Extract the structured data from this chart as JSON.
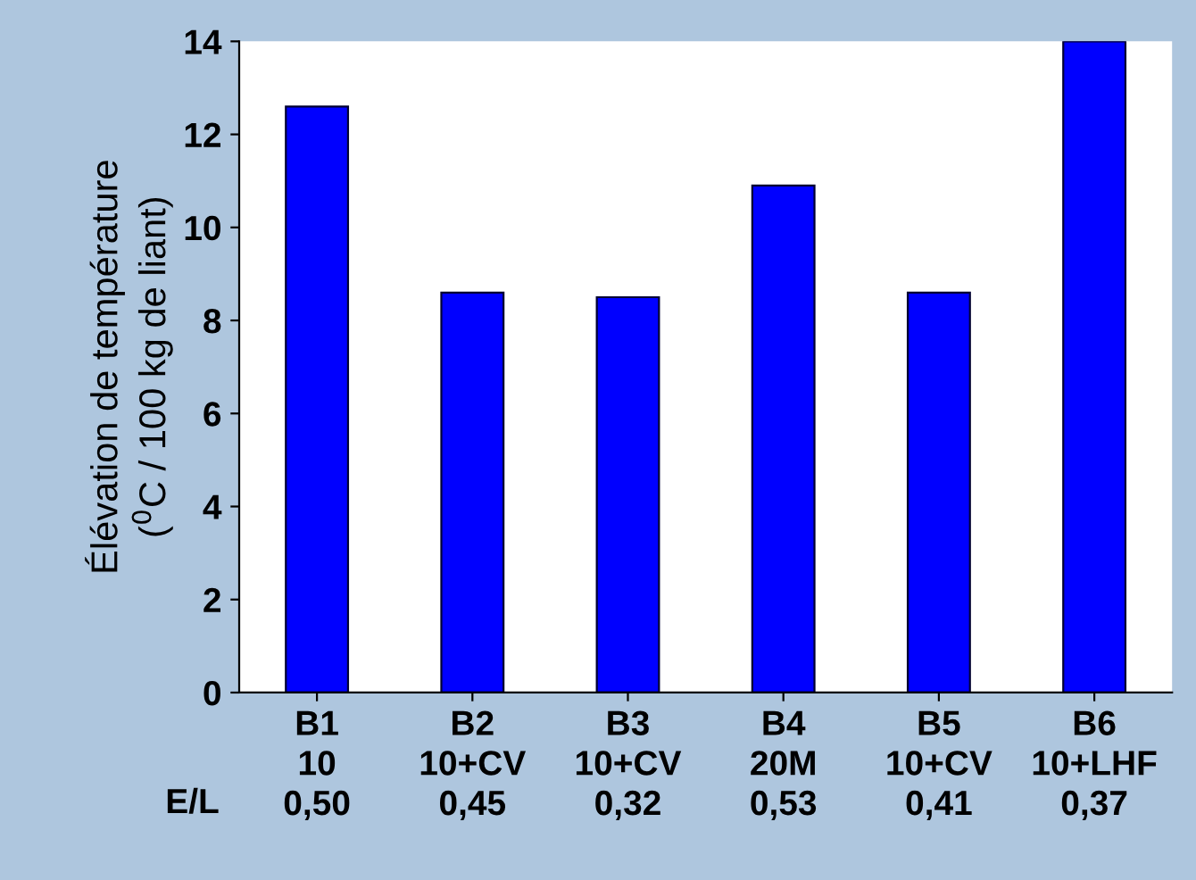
{
  "chart_data": {
    "type": "bar",
    "ylabel": "Élévation de température\n($^{0}$C / 100 kg de liant)",
    "categories": [
      "B1\n10\n0,50",
      "B2\n10+CV\n0,45",
      "B3\n10+CV\n0,32",
      "B4\n20M\n0,53",
      "B5\n10+CV\n0,41",
      "B6\n10+LHF\n0,37"
    ],
    "values": [
      12.6,
      8.6,
      8.5,
      10.9,
      8.6,
      14.0
    ],
    "color": "#0000ff",
    "ylim": [
      0,
      14
    ],
    "yticks": [
      0,
      2,
      4,
      6,
      8,
      10,
      12,
      14
    ],
    "annotations": [
      "E/L"
    ],
    "grid": false,
    "legend": false
  }
}
